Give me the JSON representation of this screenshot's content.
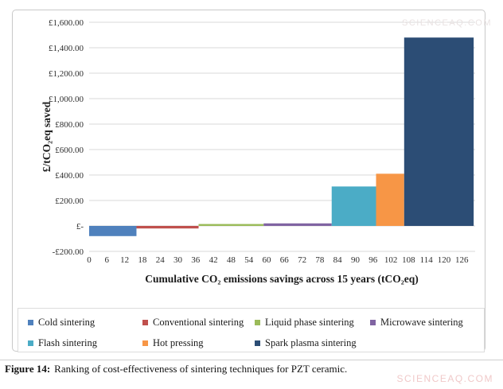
{
  "figure": {
    "caption_label": "Figure 14:",
    "caption_text": "Ranking of cost-effectiveness of sintering techniques for PZT ceramic."
  },
  "watermarks": {
    "top_right": "SCIENCEAQ.COM",
    "bottom_right": "SCIENCEAQ.COM"
  },
  "chart_data": {
    "type": "bar",
    "variant": "variable-width cost-effectiveness curve (bar width = cumulative CO2 savings, bar height = cost per tCO2eq)",
    "title": "",
    "xlabel": "Cumulative CO₂ emissions savings across 15 years (tCO₂eq)",
    "ylabel": "£/tCO₂eq saved",
    "ylim": [
      -200,
      1600
    ],
    "ytick_step": 200,
    "ytick_labels_top_to_bottom": [
      "£1,600.00",
      "£1,400.00",
      "£1,200.00",
      "£1,000.00",
      "£800.00",
      "£600.00",
      "£400.00",
      "£200.00",
      "£-",
      "-£200.00"
    ],
    "xticks": [
      0,
      6,
      12,
      18,
      24,
      30,
      36,
      42,
      48,
      54,
      60,
      66,
      72,
      78,
      84,
      90,
      96,
      102,
      108,
      114,
      120,
      126
    ],
    "xlim": [
      0,
      130.5
    ],
    "grid": true,
    "gridline_color": "#d9d9d9",
    "legend_position": "bottom",
    "series": [
      {
        "name": "Cold sintering",
        "color": "#4F81BD",
        "x_start": 0,
        "x_end": 16,
        "value": -80
      },
      {
        "name": "Conventional sintering",
        "color": "#C0504D",
        "x_start": 16,
        "x_end": 37,
        "value": -20
      },
      {
        "name": "Liquid phase sintering",
        "color": "#9BBB59",
        "x_start": 37,
        "x_end": 59,
        "value": 15
      },
      {
        "name": "Microwave sintering",
        "color": "#8064A2",
        "x_start": 59,
        "x_end": 82,
        "value": 20
      },
      {
        "name": "Flash sintering",
        "color": "#4BACC6",
        "x_start": 82,
        "x_end": 97,
        "value": 310
      },
      {
        "name": "Hot pressing",
        "color": "#F79646",
        "x_start": 97,
        "x_end": 106.5,
        "value": 410
      },
      {
        "name": "Spark plasma sintering",
        "color": "#2C4D75",
        "x_start": 106.5,
        "x_end": 130,
        "value": 1480
      }
    ]
  }
}
